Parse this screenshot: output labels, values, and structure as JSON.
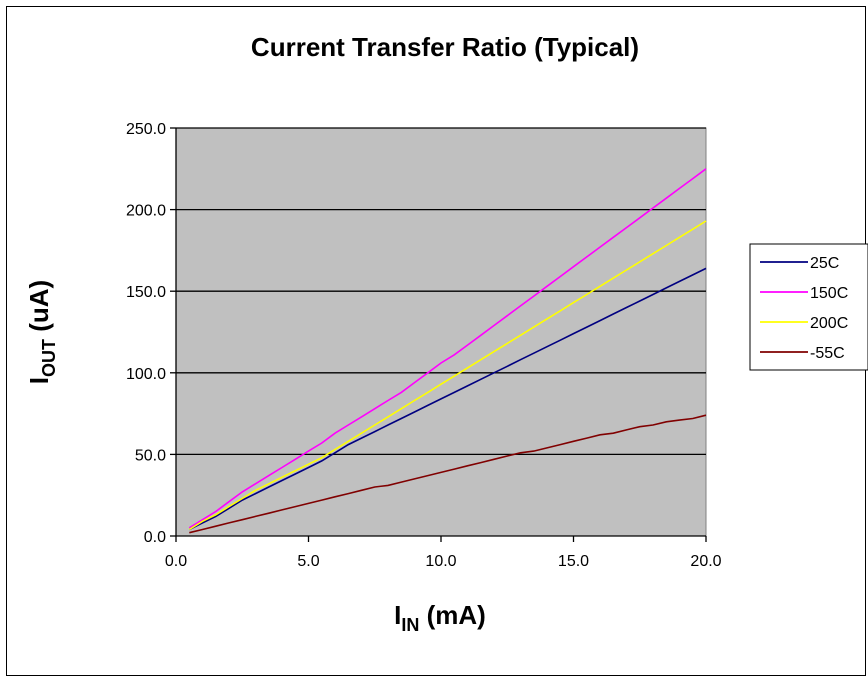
{
  "chart_data": {
    "type": "line",
    "title": "Current Transfer Ratio (Typical)",
    "xlabel": {
      "main": "I",
      "sub": "IN",
      "unit": " (mA)"
    },
    "ylabel": {
      "main": "I",
      "sub": "OUT",
      "unit": " (uA)"
    },
    "xlim": [
      0,
      20
    ],
    "ylim": [
      0,
      250
    ],
    "xticks": [
      "0.0",
      "5.0",
      "10.0",
      "15.0",
      "20.0"
    ],
    "yticks": [
      "0.0",
      "50.0",
      "100.0",
      "150.0",
      "200.0",
      "250.0"
    ],
    "grid": "horizontal",
    "plot_background": "#c0c0c0",
    "legend_position": "right",
    "x": [
      0.5,
      1.0,
      1.5,
      2.0,
      2.5,
      3.0,
      3.5,
      4.0,
      4.5,
      5.0,
      5.5,
      6.0,
      6.5,
      7.0,
      7.5,
      8.0,
      8.5,
      9.0,
      9.5,
      10.0,
      10.5,
      11.0,
      11.5,
      12.0,
      12.5,
      13.0,
      13.5,
      14.0,
      14.5,
      15.0,
      15.5,
      16.0,
      16.5,
      17.0,
      17.5,
      18.0,
      18.5,
      19.0,
      19.5,
      20.0
    ],
    "series": [
      {
        "name": "25C",
        "color": "#000080",
        "values": [
          4,
          8,
          12,
          17,
          22,
          26,
          30,
          34,
          38,
          42,
          46,
          51,
          56,
          60,
          64,
          68,
          72,
          76,
          80,
          84,
          88,
          92,
          96,
          100,
          104,
          108,
          112,
          116,
          120,
          124,
          128,
          132,
          136,
          140,
          144,
          148,
          152,
          156,
          160,
          164
        ]
      },
      {
        "name": "150C",
        "color": "#ff00ff",
        "values": [
          5,
          10,
          15,
          21,
          27,
          32,
          37,
          42,
          47,
          52,
          57,
          63,
          68,
          73,
          78,
          83,
          88,
          94,
          100,
          106,
          111,
          117,
          123,
          129,
          135,
          141,
          147,
          153,
          159,
          165,
          171,
          177,
          183,
          189,
          195,
          201,
          207,
          213,
          219,
          225
        ]
      },
      {
        "name": "200C",
        "color": "#ffff00",
        "values": [
          4,
          9,
          13,
          18,
          23,
          28,
          32,
          36,
          40,
          44,
          48,
          53,
          58,
          63,
          68,
          73,
          78,
          83,
          88,
          93,
          98,
          103,
          108,
          113,
          118,
          123,
          128,
          133,
          138,
          143,
          148,
          153,
          158,
          163,
          168,
          173,
          178,
          183,
          188,
          193
        ]
      },
      {
        "name": "-55C",
        "color": "#800000",
        "values": [
          2,
          4,
          6,
          8,
          10,
          12,
          14,
          16,
          18,
          20,
          22,
          24,
          26,
          28,
          30,
          31,
          33,
          35,
          37,
          39,
          41,
          43,
          45,
          47,
          49,
          51,
          52,
          54,
          56,
          58,
          60,
          62,
          63,
          65,
          67,
          68,
          70,
          71,
          72,
          74
        ]
      }
    ]
  }
}
